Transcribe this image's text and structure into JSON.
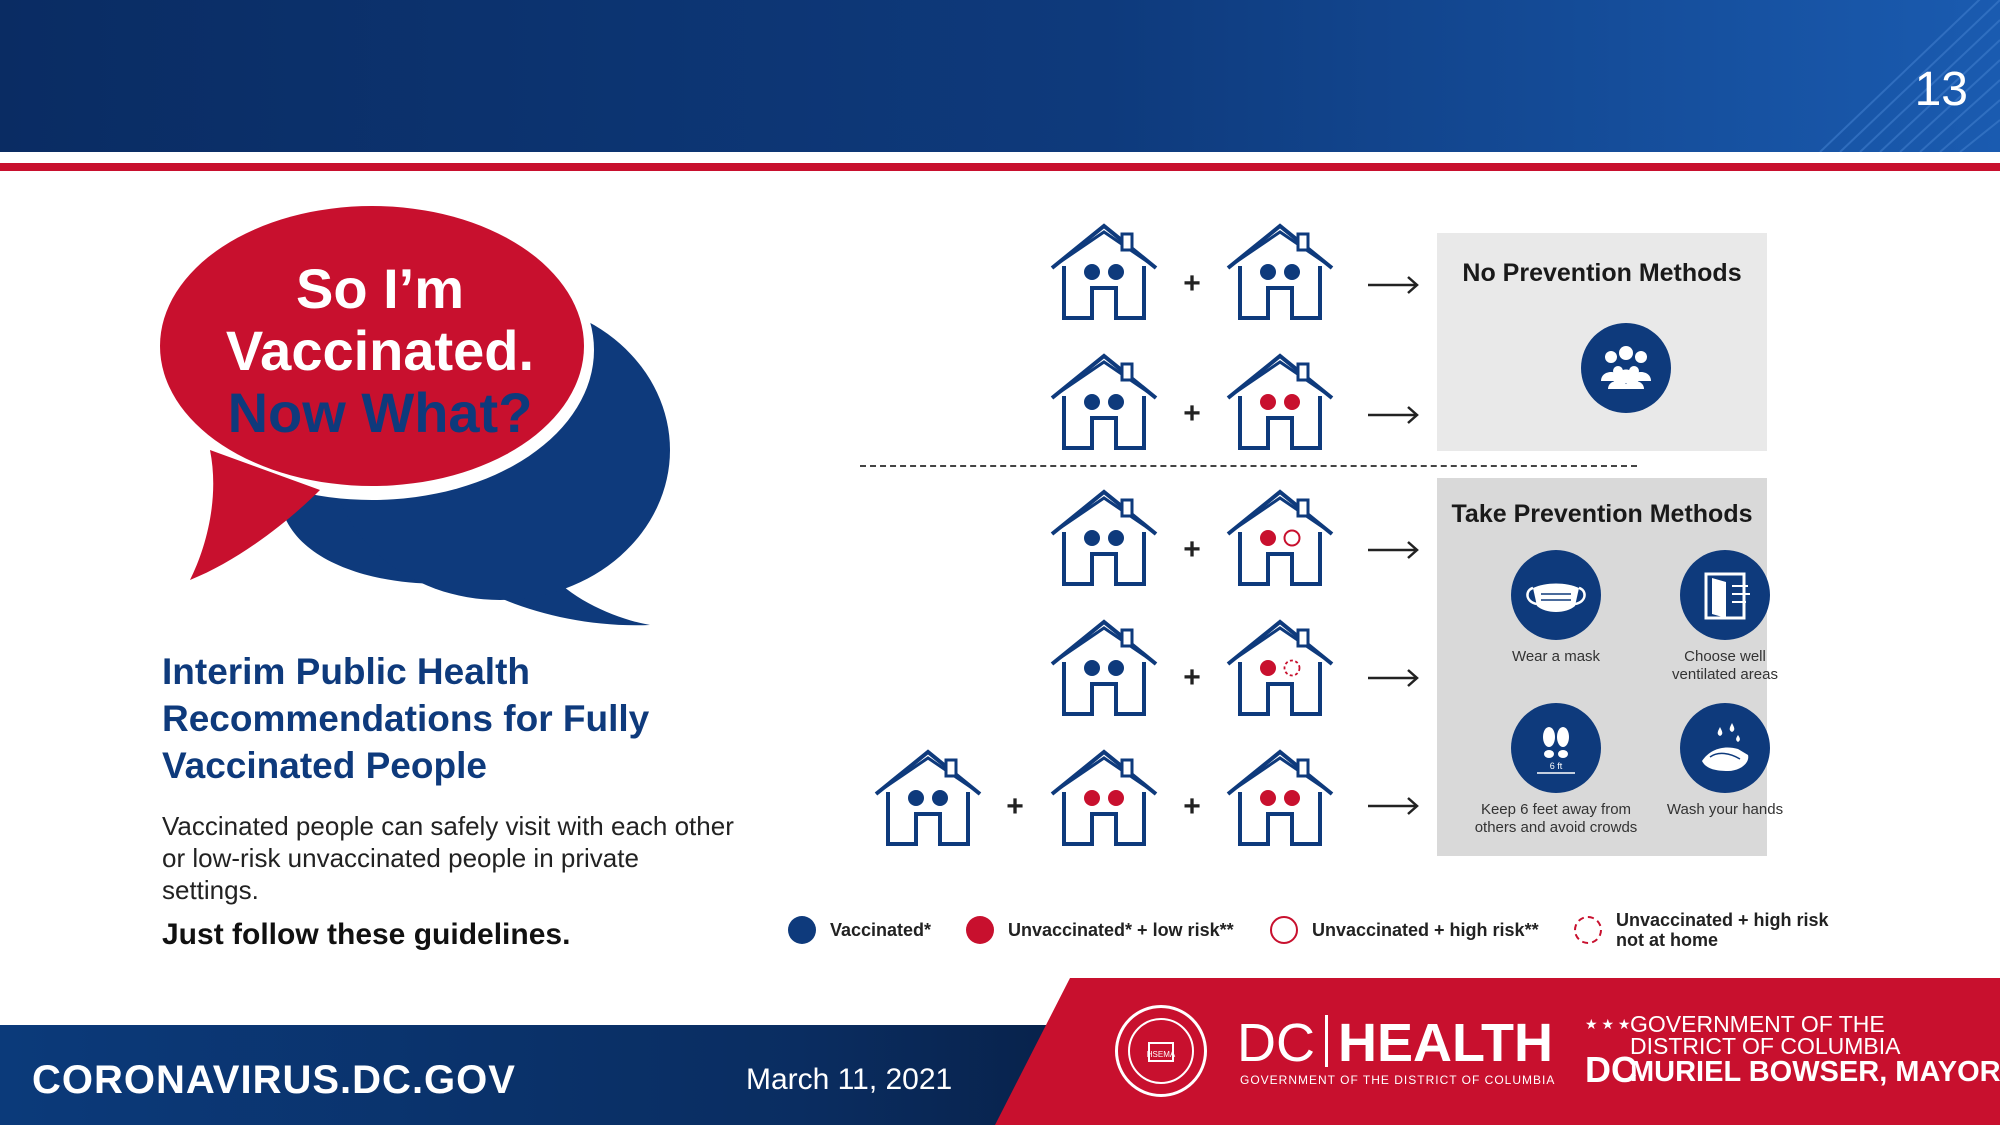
{
  "header": {
    "slide_number": "13"
  },
  "bubble": {
    "line1": "So I’m",
    "line2": "Vaccinated.",
    "line3": "Now What?"
  },
  "recommendation": {
    "title_line1": "Interim Public Health",
    "title_line2": "Recommendations for Fully",
    "title_line3": "Vaccinated People",
    "body": "Vaccinated people can safely visit with each other or low-risk unvaccinated people in private settings.",
    "cta": "Just follow these guidelines."
  },
  "scenarios": {
    "plus_label": "+"
  },
  "panels": {
    "no_prevention": {
      "title": "No Prevention Methods",
      "icon": "group-people-icon"
    },
    "take_prevention": {
      "title": "Take Prevention Methods",
      "items": [
        {
          "label_line1": "Wear a mask",
          "label_line2": "",
          "icon": "face-mask-icon"
        },
        {
          "label_line1": "Choose well",
          "label_line2": "ventilated areas",
          "icon": "open-window-icon"
        },
        {
          "label_line1": "Keep 6 feet away from",
          "label_line2": "others and avoid crowds",
          "icon": "footprints-6ft-icon",
          "icon_text": "6 ft"
        },
        {
          "label_line1": "Wash your hands",
          "label_line2": "",
          "icon": "wash-hands-icon"
        }
      ]
    }
  },
  "legend": {
    "vaccinated": "Vaccinated*",
    "unvaccinated_low": "Unvaccinated* + low risk**",
    "unvaccinated_high": "Unvaccinated + high risk**",
    "unvaccinated_high_not_home_line1": "Unvaccinated + high risk",
    "unvaccinated_high_not_home_line2": "not at home"
  },
  "footer": {
    "url": "CORONAVIRUS.DC.GOV",
    "date": "March 11, 2021",
    "dc_health_dc": "DC",
    "dc_health_health": "HEALTH",
    "dc_health_sub": "GOVERNMENT OF THE DISTRICT OF COLUMBIA",
    "gov_line1": "GOVERNMENT OF THE",
    "gov_line2": "DISTRICT OF COLUMBIA",
    "gov_line3": "MURIEL BOWSER, MAYOR",
    "gov_dc": "DC",
    "seal_text": "HSEMA"
  },
  "colors": {
    "navy": "#0e3a7c",
    "red": "#c8102e",
    "panel_light": "#e9e9e9",
    "panel_dark": "#d9d9d9"
  }
}
